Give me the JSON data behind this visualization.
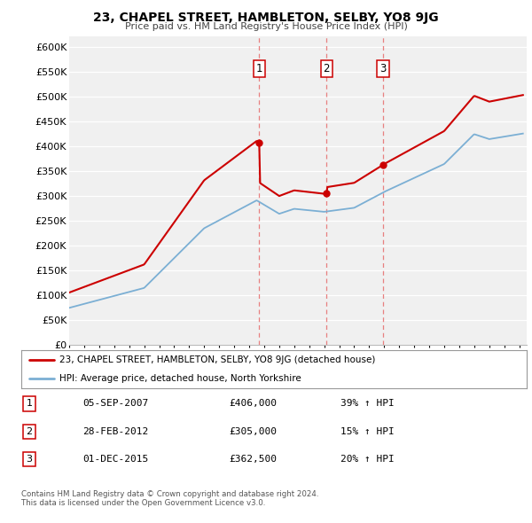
{
  "title": "23, CHAPEL STREET, HAMBLETON, SELBY, YO8 9JG",
  "subtitle": "Price paid vs. HM Land Registry's House Price Index (HPI)",
  "ylim": [
    0,
    620000
  ],
  "xlim_start": 1995.0,
  "xlim_end": 2025.5,
  "sale_dates": [
    2007.67,
    2012.16,
    2015.92
  ],
  "sale_prices": [
    406000,
    305000,
    362500
  ],
  "sale_labels": [
    "1",
    "2",
    "3"
  ],
  "legend_line1": "23, CHAPEL STREET, HAMBLETON, SELBY, YO8 9JG (detached house)",
  "legend_line2": "HPI: Average price, detached house, North Yorkshire",
  "table_data": [
    [
      "1",
      "05-SEP-2007",
      "£406,000",
      "39% ↑ HPI"
    ],
    [
      "2",
      "28-FEB-2012",
      "£305,000",
      "15% ↑ HPI"
    ],
    [
      "3",
      "01-DEC-2015",
      "£362,500",
      "20% ↑ HPI"
    ]
  ],
  "footnote1": "Contains HM Land Registry data © Crown copyright and database right 2024.",
  "footnote2": "This data is licensed under the Open Government Licence v3.0.",
  "color_red": "#cc0000",
  "color_blue": "#7bafd4",
  "color_dashed": "#e88080",
  "background_chart": "#f0f0f0",
  "background_fig": "#ffffff"
}
